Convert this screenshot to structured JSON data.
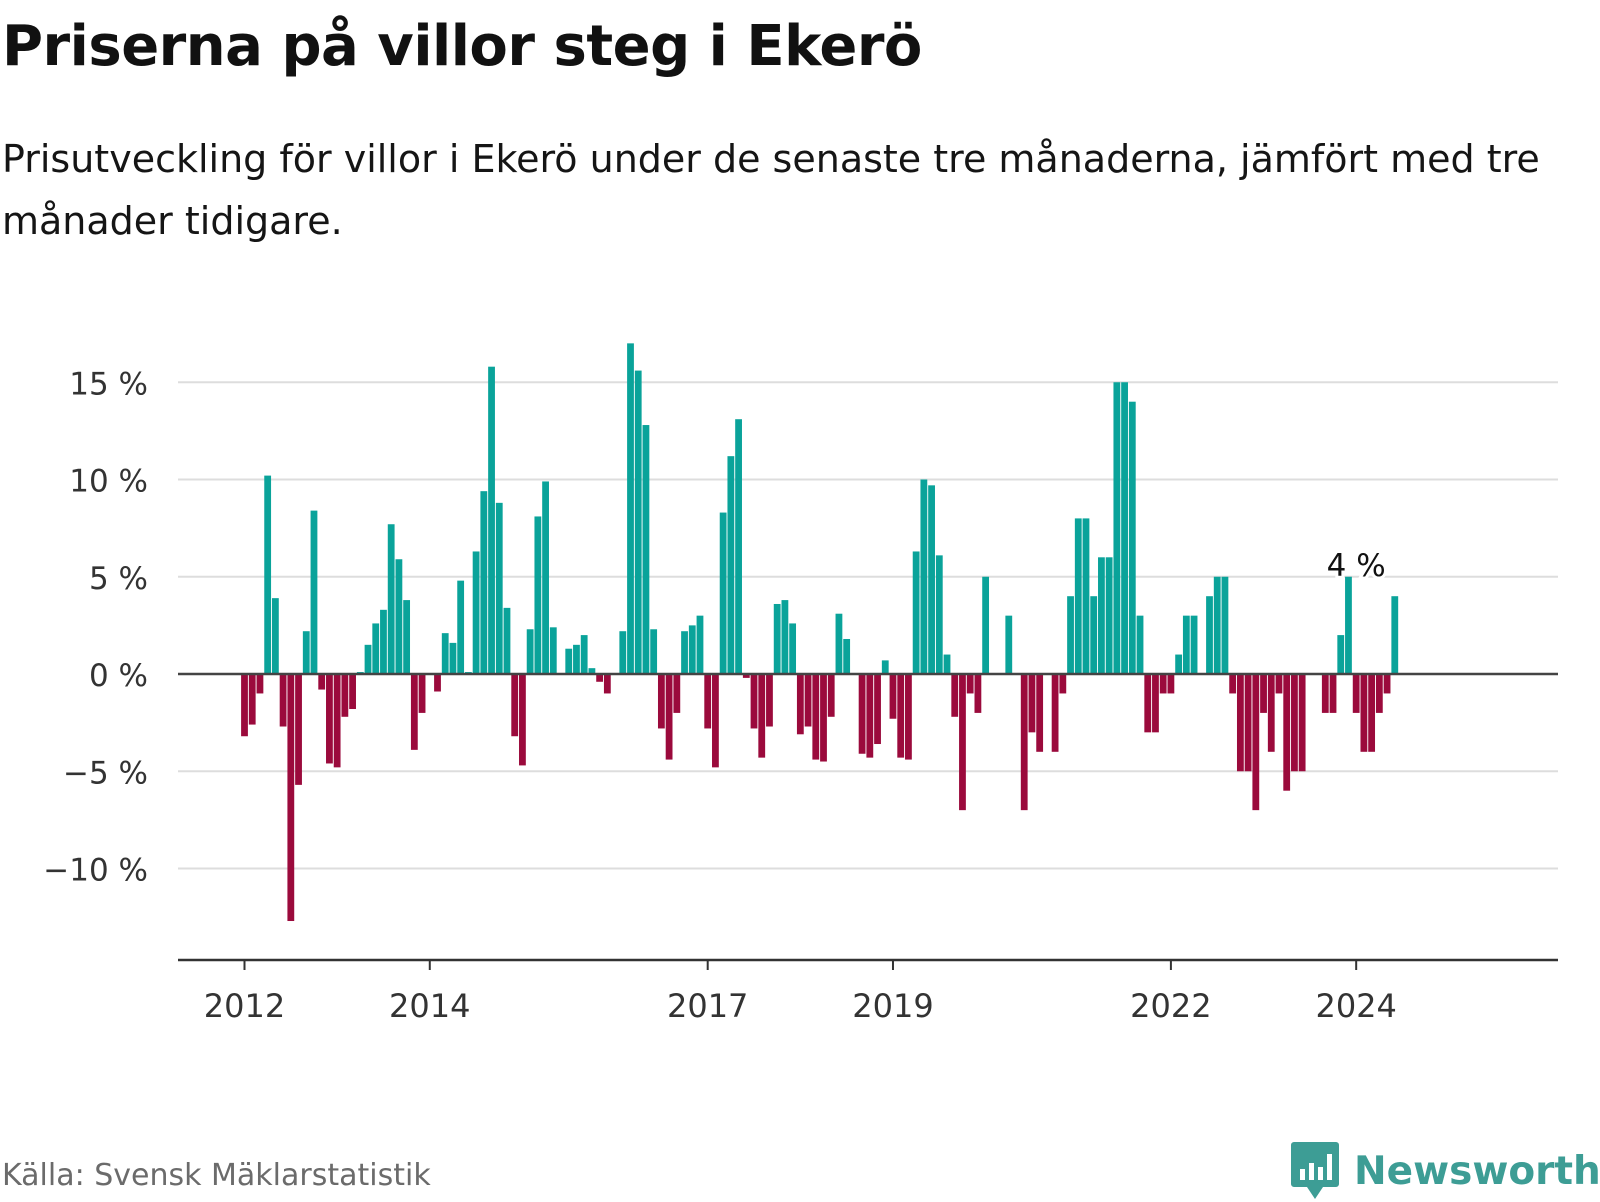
{
  "title": "Priserna på villor steg i Ekerö",
  "subtitle": "Prisutveckling för villor i Ekerö under de senaste tre månaderna, jämfört med tre månader tidigare.",
  "source": "Källa: Svensk Mäklarstatistik",
  "brand": {
    "name": "Newsworthy",
    "logo_icon": "newsworthy-logo-icon"
  },
  "colors": {
    "positive": "#0aa39a",
    "negative": "#9b0a3c",
    "grid": "#dddddd",
    "axis": "#333333",
    "brand": "#3d9d95"
  },
  "chart_data": {
    "type": "bar",
    "title": "Priserna på villor steg i Ekerö",
    "xlabel": "",
    "ylabel": "",
    "ylim": [
      -14.5,
      17
    ],
    "yticks": [
      -10,
      -5,
      0,
      5,
      10,
      15
    ],
    "ytick_labels": [
      "−10 %",
      "−5 %",
      "0 %",
      "5 %",
      "10 %",
      "15 %"
    ],
    "xticks": [
      {
        "label": "2012",
        "index": 0
      },
      {
        "label": "2014",
        "index": 24
      },
      {
        "label": "2017",
        "index": 60
      },
      {
        "label": "2019",
        "index": 84
      },
      {
        "label": "2022",
        "index": 120
      },
      {
        "label": "2024",
        "index": 144
      }
    ],
    "start": "2012-01",
    "annotation": {
      "text": "4 %",
      "index": 144,
      "value": 4
    },
    "values": [
      -3.2,
      -2.6,
      -1.0,
      10.2,
      3.9,
      -2.7,
      -12.7,
      -5.7,
      2.2,
      8.4,
      -0.8,
      -4.6,
      -4.8,
      -2.2,
      -1.8,
      0.1,
      1.5,
      2.6,
      3.3,
      7.7,
      5.9,
      3.8,
      -3.9,
      -2.0,
      0.0,
      -0.9,
      2.1,
      1.6,
      4.8,
      0.1,
      6.3,
      9.4,
      15.8,
      8.8,
      3.4,
      -3.2,
      -4.7,
      2.3,
      8.1,
      9.9,
      2.4,
      0.0,
      1.3,
      1.5,
      2.0,
      0.3,
      -0.4,
      -1.0,
      0.0,
      2.2,
      17.0,
      15.6,
      12.8,
      2.3,
      -2.8,
      -4.4,
      -2.0,
      2.2,
      2.5,
      3.0,
      -2.8,
      -4.8,
      8.3,
      11.2,
      13.1,
      -0.2,
      -2.8,
      -4.3,
      -2.7,
      3.6,
      3.8,
      2.6,
      -3.1,
      -2.7,
      -4.4,
      -4.5,
      -2.2,
      3.1,
      1.8,
      0.0,
      -4.1,
      -4.3,
      -3.6,
      0.7,
      -2.3,
      -4.3,
      -4.4,
      6.3,
      10.0,
      9.7,
      6.1,
      1.0,
      -2.2,
      -7.0,
      -1.0,
      -2.0,
      5.0,
      0.0,
      0.0,
      3.0,
      0.0,
      -7.0,
      -3.0,
      -4.0,
      0.0,
      -4.0,
      -1.0,
      4.0,
      8.0,
      8.0,
      4.0,
      6.0,
      6.0,
      15.0,
      15.0,
      14.0,
      3.0,
      -3.0,
      -3.0,
      -1.0,
      -1.0,
      1.0,
      3.0,
      3.0,
      0.0,
      4.0,
      5.0,
      5.0,
      -1.0,
      -5.0,
      -5.0,
      -7.0,
      -2.0,
      -4.0,
      -1.0,
      -6.0,
      -5.0,
      -5.0,
      0.0,
      0.0,
      -2.0,
      -2.0,
      2.0,
      5.0,
      -2.0,
      -4.0,
      -4.0,
      -2.0,
      -1.0,
      4.0
    ]
  }
}
